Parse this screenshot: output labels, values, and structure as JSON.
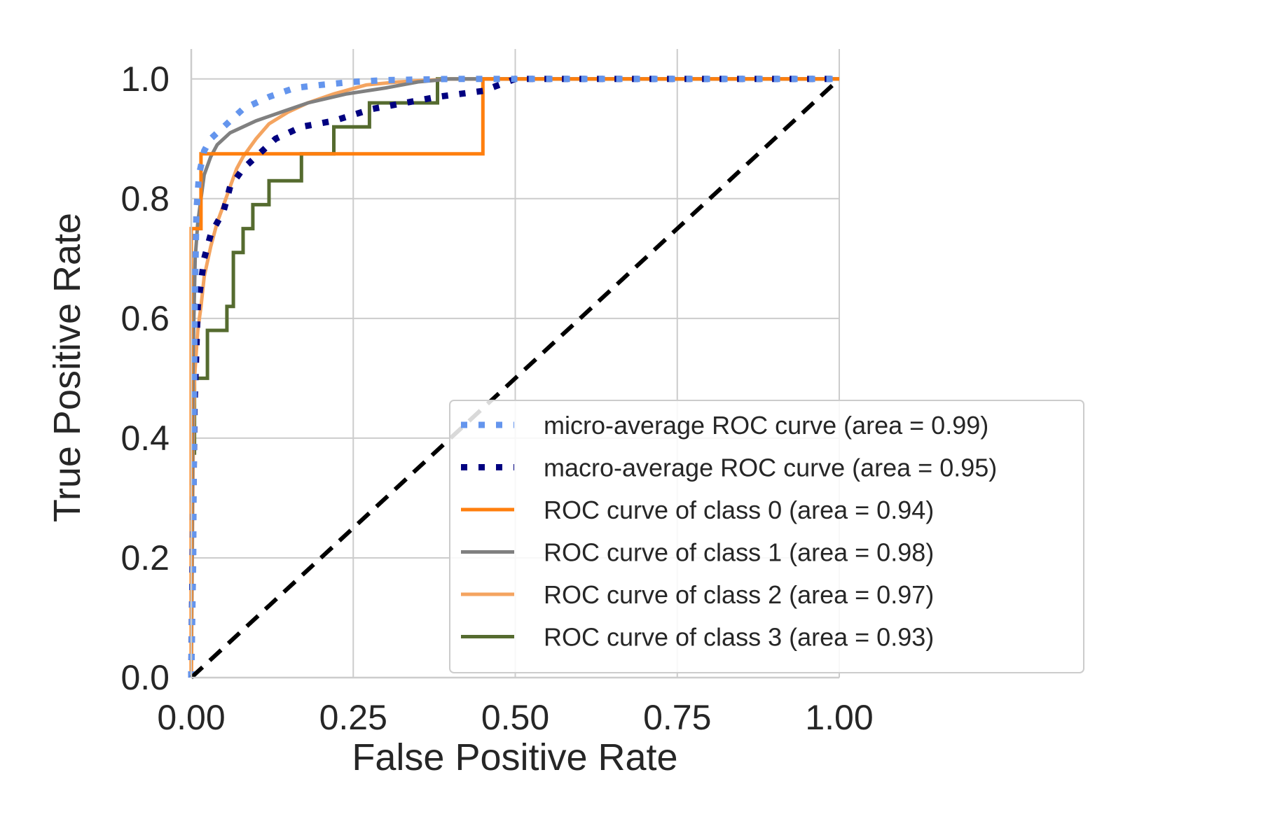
{
  "chart_data": {
    "type": "line",
    "title": "",
    "xlabel": "False Positive Rate",
    "ylabel": "True Positive Rate",
    "xlim": [
      0.0,
      1.0
    ],
    "ylim": [
      0.0,
      1.05
    ],
    "xticks": [
      "0.00",
      "0.25",
      "0.50",
      "0.75",
      "1.00"
    ],
    "yticks": [
      "0.0",
      "0.2",
      "0.4",
      "0.6",
      "0.8",
      "1.0"
    ],
    "grid": true,
    "legend_position": "lower-right",
    "series": [
      {
        "name": "micro-average ROC curve (area = 0.99)",
        "color": "#6495ed",
        "style": "dotted",
        "x": [
          0.0,
          0.003,
          0.005,
          0.008,
          0.012,
          0.02,
          0.03,
          0.05,
          0.08,
          0.12,
          0.16,
          0.2,
          0.25,
          0.3,
          0.4,
          0.5,
          1.0
        ],
        "y": [
          0.0,
          0.2,
          0.6,
          0.78,
          0.84,
          0.88,
          0.9,
          0.92,
          0.95,
          0.97,
          0.985,
          0.99,
          0.995,
          0.998,
          1.0,
          1.0,
          1.0
        ]
      },
      {
        "name": "macro-average ROC curve (area = 0.95)",
        "color": "#000080",
        "style": "dotted",
        "x": [
          0.0,
          0.005,
          0.01,
          0.02,
          0.03,
          0.05,
          0.06,
          0.08,
          0.1,
          0.13,
          0.17,
          0.22,
          0.28,
          0.38,
          0.45,
          0.5,
          1.0
        ],
        "y": [
          0.0,
          0.45,
          0.62,
          0.7,
          0.74,
          0.78,
          0.82,
          0.85,
          0.87,
          0.9,
          0.92,
          0.93,
          0.95,
          0.97,
          0.98,
          1.0,
          1.0
        ]
      },
      {
        "name": "ROC curve of class 0 (area = 0.94)",
        "color": "#ff7f0e",
        "style": "solid",
        "x": [
          0.0,
          0.0,
          0.015,
          0.015,
          0.45,
          0.45,
          1.0
        ],
        "y": [
          0.0,
          0.75,
          0.75,
          0.875,
          0.875,
          1.0,
          1.0
        ]
      },
      {
        "name": "ROC curve of class 1 (area = 0.98)",
        "color": "#808080",
        "style": "solid",
        "x": [
          0.0,
          0.003,
          0.006,
          0.01,
          0.015,
          0.02,
          0.03,
          0.04,
          0.06,
          0.08,
          0.1,
          0.14,
          0.18,
          0.24,
          0.3,
          0.35,
          0.4,
          1.0
        ],
        "y": [
          0.0,
          0.55,
          0.7,
          0.76,
          0.8,
          0.84,
          0.87,
          0.89,
          0.91,
          0.92,
          0.93,
          0.945,
          0.96,
          0.975,
          0.985,
          0.995,
          1.0,
          1.0
        ]
      },
      {
        "name": "ROC curve of class 2 (area = 0.97)",
        "color": "#f4a460",
        "style": "solid",
        "x": [
          0.0,
          0.003,
          0.005,
          0.01,
          0.015,
          0.02,
          0.03,
          0.04,
          0.05,
          0.06,
          0.07,
          0.08,
          0.1,
          0.12,
          0.15,
          0.18,
          0.22,
          0.27,
          0.32,
          0.4,
          1.0
        ],
        "y": [
          0.0,
          0.38,
          0.5,
          0.58,
          0.62,
          0.67,
          0.72,
          0.76,
          0.79,
          0.82,
          0.85,
          0.87,
          0.9,
          0.925,
          0.945,
          0.96,
          0.975,
          0.99,
          0.995,
          1.0,
          1.0
        ]
      },
      {
        "name": "ROC curve of class 3 (area = 0.93)",
        "color": "#556b2f",
        "style": "solid",
        "x": [
          0.0,
          0.0,
          0.005,
          0.005,
          0.025,
          0.025,
          0.055,
          0.055,
          0.065,
          0.065,
          0.07,
          0.07,
          0.08,
          0.08,
          0.095,
          0.095,
          0.12,
          0.12,
          0.17,
          0.17,
          0.22,
          0.22,
          0.275,
          0.275,
          0.38,
          0.38,
          1.0
        ],
        "y": [
          0.0,
          0.375,
          0.375,
          0.5,
          0.5,
          0.58,
          0.58,
          0.62,
          0.62,
          0.71,
          0.71,
          0.71,
          0.71,
          0.75,
          0.75,
          0.79,
          0.79,
          0.83,
          0.83,
          0.875,
          0.875,
          0.92,
          0.92,
          0.96,
          0.96,
          1.0,
          1.0
        ]
      },
      {
        "name": "",
        "color": "#000000",
        "style": "dashed",
        "x": [
          0.0,
          1.0
        ],
        "y": [
          0.0,
          1.0
        ]
      }
    ]
  }
}
